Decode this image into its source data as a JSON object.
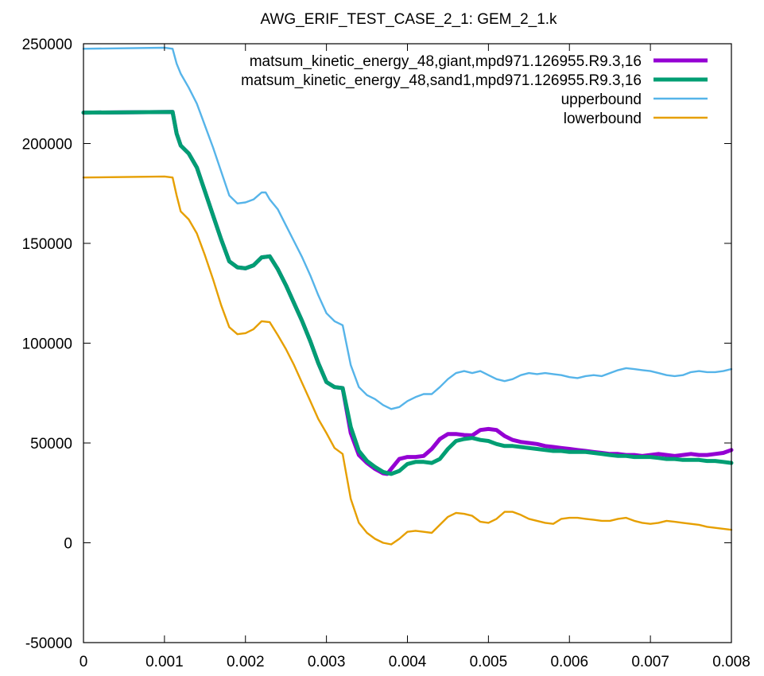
{
  "chart_data": {
    "type": "line",
    "title": "AWG_ERIF_TEST_CASE_2_1: GEM_2_1.k",
    "xlabel": "",
    "ylabel": "",
    "xlim": [
      0,
      0.008
    ],
    "ylim": [
      -50000,
      250000
    ],
    "x_ticks": [
      "0",
      "0.001",
      "0.002",
      "0.003",
      "0.004",
      "0.005",
      "0.006",
      "0.007",
      "0.008"
    ],
    "y_ticks": [
      "-50000",
      "0",
      "50000",
      "100000",
      "150000",
      "200000",
      "250000"
    ],
    "grid": false,
    "legend_position": "top-right",
    "series": [
      {
        "name": "matsum_kinetic_energy_48,giant,mpd971.126955.R9.3,16",
        "color": "#9400d3",
        "width": 5,
        "points": [
          [
            0,
            215500
          ],
          [
            0.0011,
            215800
          ],
          [
            0.00115,
            205000
          ],
          [
            0.0012,
            199000
          ],
          [
            0.0013,
            195000
          ],
          [
            0.0014,
            188000
          ],
          [
            0.0015,
            176000
          ],
          [
            0.0016,
            164000
          ],
          [
            0.0017,
            152000
          ],
          [
            0.0018,
            141000
          ],
          [
            0.0019,
            138000
          ],
          [
            0.002,
            137500
          ],
          [
            0.0021,
            139000
          ],
          [
            0.0022,
            143000
          ],
          [
            0.0023,
            143500
          ],
          [
            0.0024,
            137000
          ],
          [
            0.0025,
            129000
          ],
          [
            0.0026,
            120000
          ],
          [
            0.0027,
            111000
          ],
          [
            0.0028,
            101000
          ],
          [
            0.0029,
            90000
          ],
          [
            0.003,
            80500
          ],
          [
            0.0031,
            78000
          ],
          [
            0.0032,
            77500
          ],
          [
            0.0033,
            55000
          ],
          [
            0.0034,
            44000
          ],
          [
            0.0035,
            40000
          ],
          [
            0.0036,
            37000
          ],
          [
            0.0037,
            34800
          ],
          [
            0.00375,
            34500
          ],
          [
            0.0038,
            37000
          ],
          [
            0.0039,
            42000
          ],
          [
            0.004,
            43000
          ],
          [
            0.0041,
            43000
          ],
          [
            0.0042,
            43500
          ],
          [
            0.0043,
            47000
          ],
          [
            0.0044,
            52000
          ],
          [
            0.0045,
            54500
          ],
          [
            0.0046,
            54500
          ],
          [
            0.0047,
            54000
          ],
          [
            0.0048,
            53800
          ],
          [
            0.0049,
            56500
          ],
          [
            0.005,
            57000
          ],
          [
            0.0051,
            56500
          ],
          [
            0.0052,
            53500
          ],
          [
            0.0053,
            51500
          ],
          [
            0.0054,
            50500
          ],
          [
            0.0055,
            50000
          ],
          [
            0.0056,
            49500
          ],
          [
            0.0057,
            48500
          ],
          [
            0.0058,
            48000
          ],
          [
            0.0059,
            47500
          ],
          [
            0.006,
            47000
          ],
          [
            0.0061,
            46500
          ],
          [
            0.0062,
            46000
          ],
          [
            0.0063,
            45500
          ],
          [
            0.0064,
            45000
          ],
          [
            0.0065,
            44500
          ],
          [
            0.0066,
            44500
          ],
          [
            0.0067,
            44000
          ],
          [
            0.0068,
            44000
          ],
          [
            0.0069,
            43500
          ],
          [
            0.007,
            44000
          ],
          [
            0.0071,
            44500
          ],
          [
            0.0072,
            44000
          ],
          [
            0.0073,
            43500
          ],
          [
            0.0074,
            44000
          ],
          [
            0.0075,
            44500
          ],
          [
            0.0076,
            44000
          ],
          [
            0.0077,
            44000
          ],
          [
            0.0078,
            44500
          ],
          [
            0.0079,
            45000
          ],
          [
            0.008,
            46500
          ]
        ]
      },
      {
        "name": "matsum_kinetic_energy_48,sand1,mpd971.126955.R9.3,16",
        "color": "#009e73",
        "width": 5,
        "points": [
          [
            0,
            215500
          ],
          [
            0.0011,
            215800
          ],
          [
            0.00115,
            205000
          ],
          [
            0.0012,
            199000
          ],
          [
            0.0013,
            195000
          ],
          [
            0.0014,
            188000
          ],
          [
            0.0015,
            176000
          ],
          [
            0.0016,
            164000
          ],
          [
            0.0017,
            152000
          ],
          [
            0.0018,
            141000
          ],
          [
            0.0019,
            138000
          ],
          [
            0.002,
            137500
          ],
          [
            0.0021,
            139000
          ],
          [
            0.0022,
            143000
          ],
          [
            0.0023,
            143500
          ],
          [
            0.0024,
            137000
          ],
          [
            0.0025,
            129000
          ],
          [
            0.0026,
            120000
          ],
          [
            0.0027,
            111000
          ],
          [
            0.0028,
            101000
          ],
          [
            0.0029,
            90000
          ],
          [
            0.003,
            80500
          ],
          [
            0.0031,
            78000
          ],
          [
            0.0032,
            77500
          ],
          [
            0.0033,
            58000
          ],
          [
            0.0034,
            46000
          ],
          [
            0.0035,
            41000
          ],
          [
            0.0036,
            38000
          ],
          [
            0.0037,
            35500
          ],
          [
            0.0038,
            34500
          ],
          [
            0.0039,
            36000
          ],
          [
            0.004,
            39500
          ],
          [
            0.0041,
            40500
          ],
          [
            0.0042,
            40500
          ],
          [
            0.0043,
            40000
          ],
          [
            0.0044,
            42000
          ],
          [
            0.0045,
            47000
          ],
          [
            0.0046,
            51000
          ],
          [
            0.0047,
            52000
          ],
          [
            0.0048,
            52500
          ],
          [
            0.0049,
            51500
          ],
          [
            0.005,
            51000
          ],
          [
            0.0051,
            49500
          ],
          [
            0.0052,
            48500
          ],
          [
            0.0053,
            48500
          ],
          [
            0.0054,
            48000
          ],
          [
            0.0055,
            47500
          ],
          [
            0.0056,
            47000
          ],
          [
            0.0057,
            46500
          ],
          [
            0.0058,
            46000
          ],
          [
            0.0059,
            46000
          ],
          [
            0.006,
            45500
          ],
          [
            0.0061,
            45500
          ],
          [
            0.0062,
            45500
          ],
          [
            0.0063,
            45000
          ],
          [
            0.0064,
            44500
          ],
          [
            0.0065,
            44000
          ],
          [
            0.0066,
            43500
          ],
          [
            0.0067,
            43500
          ],
          [
            0.0068,
            43000
          ],
          [
            0.0069,
            43000
          ],
          [
            0.007,
            43000
          ],
          [
            0.0071,
            42500
          ],
          [
            0.0072,
            42000
          ],
          [
            0.0073,
            42000
          ],
          [
            0.0074,
            41500
          ],
          [
            0.0075,
            41500
          ],
          [
            0.0076,
            41500
          ],
          [
            0.0077,
            41000
          ],
          [
            0.0078,
            41000
          ],
          [
            0.0079,
            40500
          ],
          [
            0.008,
            40000
          ]
        ]
      },
      {
        "name": "upperbound",
        "color": "#56b4e9",
        "width": 2.4,
        "points": [
          [
            0,
            247500
          ],
          [
            0.001,
            248000
          ],
          [
            0.0011,
            247500
          ],
          [
            0.00115,
            240000
          ],
          [
            0.0012,
            235000
          ],
          [
            0.0013,
            228000
          ],
          [
            0.0014,
            220000
          ],
          [
            0.0015,
            209000
          ],
          [
            0.0016,
            198000
          ],
          [
            0.0017,
            186000
          ],
          [
            0.0018,
            174000
          ],
          [
            0.0019,
            170000
          ],
          [
            0.002,
            170500
          ],
          [
            0.0021,
            172000
          ],
          [
            0.0022,
            175500
          ],
          [
            0.00225,
            175500
          ],
          [
            0.0023,
            172000
          ],
          [
            0.0024,
            167000
          ],
          [
            0.0025,
            159000
          ],
          [
            0.0026,
            151000
          ],
          [
            0.0027,
            143000
          ],
          [
            0.0028,
            134000
          ],
          [
            0.0029,
            124000
          ],
          [
            0.003,
            115000
          ],
          [
            0.0031,
            111000
          ],
          [
            0.0032,
            109000
          ],
          [
            0.0033,
            89000
          ],
          [
            0.0034,
            78000
          ],
          [
            0.0035,
            74000
          ],
          [
            0.0036,
            72000
          ],
          [
            0.0037,
            69000
          ],
          [
            0.0038,
            67000
          ],
          [
            0.0039,
            68000
          ],
          [
            0.004,
            71000
          ],
          [
            0.0041,
            73000
          ],
          [
            0.0042,
            74500
          ],
          [
            0.0043,
            74500
          ],
          [
            0.0044,
            78000
          ],
          [
            0.0045,
            82000
          ],
          [
            0.0046,
            85000
          ],
          [
            0.0047,
            86000
          ],
          [
            0.0048,
            85000
          ],
          [
            0.0049,
            86000
          ],
          [
            0.005,
            84000
          ],
          [
            0.0051,
            82000
          ],
          [
            0.0052,
            81000
          ],
          [
            0.0053,
            82000
          ],
          [
            0.0054,
            84000
          ],
          [
            0.0055,
            85000
          ],
          [
            0.0056,
            84500
          ],
          [
            0.0057,
            85000
          ],
          [
            0.0058,
            84500
          ],
          [
            0.0059,
            84000
          ],
          [
            0.006,
            83000
          ],
          [
            0.0061,
            82500
          ],
          [
            0.0062,
            83500
          ],
          [
            0.0063,
            84000
          ],
          [
            0.0064,
            83500
          ],
          [
            0.0065,
            85000
          ],
          [
            0.0066,
            86500
          ],
          [
            0.0067,
            87500
          ],
          [
            0.0068,
            87000
          ],
          [
            0.0069,
            86500
          ],
          [
            0.007,
            86000
          ],
          [
            0.0071,
            85000
          ],
          [
            0.0072,
            84000
          ],
          [
            0.0073,
            83500
          ],
          [
            0.0074,
            84000
          ],
          [
            0.0075,
            85500
          ],
          [
            0.0076,
            86000
          ],
          [
            0.0077,
            85500
          ],
          [
            0.0078,
            85500
          ],
          [
            0.0079,
            86000
          ],
          [
            0.008,
            87000
          ]
        ]
      },
      {
        "name": "lowerbound",
        "color": "#e69f00",
        "width": 2.4,
        "points": [
          [
            0,
            183000
          ],
          [
            0.001,
            183500
          ],
          [
            0.0011,
            183000
          ],
          [
            0.00115,
            174000
          ],
          [
            0.0012,
            166000
          ],
          [
            0.0013,
            162000
          ],
          [
            0.0014,
            155000
          ],
          [
            0.0015,
            144000
          ],
          [
            0.0016,
            132000
          ],
          [
            0.0017,
            119000
          ],
          [
            0.0018,
            108000
          ],
          [
            0.0019,
            104500
          ],
          [
            0.002,
            105000
          ],
          [
            0.0021,
            107000
          ],
          [
            0.0022,
            111000
          ],
          [
            0.0023,
            110500
          ],
          [
            0.0024,
            104000
          ],
          [
            0.0025,
            97000
          ],
          [
            0.0026,
            89000
          ],
          [
            0.0027,
            80000
          ],
          [
            0.0028,
            71000
          ],
          [
            0.0029,
            62000
          ],
          [
            0.003,
            55000
          ],
          [
            0.0031,
            47500
          ],
          [
            0.0032,
            44500
          ],
          [
            0.0033,
            22000
          ],
          [
            0.0034,
            10000
          ],
          [
            0.0035,
            5000
          ],
          [
            0.0036,
            2000
          ],
          [
            0.0037,
            0
          ],
          [
            0.0038,
            -800
          ],
          [
            0.0039,
            2000
          ],
          [
            0.004,
            5500
          ],
          [
            0.0041,
            6000
          ],
          [
            0.0042,
            5500
          ],
          [
            0.0043,
            5000
          ],
          [
            0.0044,
            9000
          ],
          [
            0.0045,
            13000
          ],
          [
            0.0046,
            15000
          ],
          [
            0.0047,
            14500
          ],
          [
            0.0048,
            13500
          ],
          [
            0.0049,
            10500
          ],
          [
            0.005,
            10000
          ],
          [
            0.0051,
            12000
          ],
          [
            0.0052,
            15500
          ],
          [
            0.0053,
            15500
          ],
          [
            0.0054,
            14000
          ],
          [
            0.0055,
            12000
          ],
          [
            0.0056,
            11000
          ],
          [
            0.0057,
            10000
          ],
          [
            0.0058,
            9500
          ],
          [
            0.0059,
            12000
          ],
          [
            0.006,
            12500
          ],
          [
            0.0061,
            12500
          ],
          [
            0.0062,
            12000
          ],
          [
            0.0063,
            11500
          ],
          [
            0.0064,
            11000
          ],
          [
            0.0065,
            11000
          ],
          [
            0.0066,
            12000
          ],
          [
            0.0067,
            12500
          ],
          [
            0.0068,
            11000
          ],
          [
            0.0069,
            10000
          ],
          [
            0.007,
            9500
          ],
          [
            0.0071,
            10000
          ],
          [
            0.0072,
            11000
          ],
          [
            0.0073,
            10500
          ],
          [
            0.0074,
            10000
          ],
          [
            0.0075,
            9500
          ],
          [
            0.0076,
            9000
          ],
          [
            0.0077,
            8000
          ],
          [
            0.0078,
            7500
          ],
          [
            0.0079,
            7000
          ],
          [
            0.008,
            6500
          ]
        ]
      }
    ]
  }
}
